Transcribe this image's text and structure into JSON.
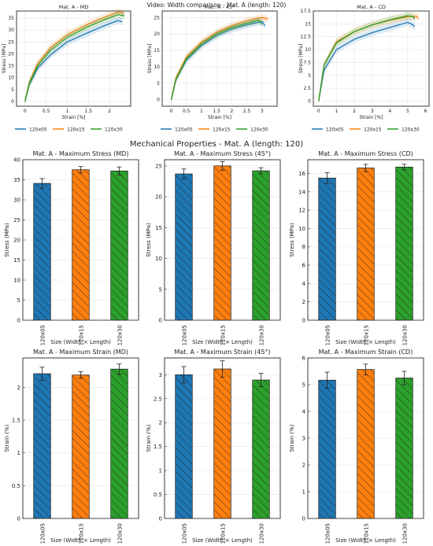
{
  "colors": {
    "s1": "#1f77b4",
    "s2": "#ff7f0e",
    "s3": "#2ca02c",
    "grid": "#e6e6e6"
  },
  "header": {
    "video_title": "Video: Width comparison -   Mat. A (length: 120)"
  },
  "section": {
    "title": "Mechanical Properties - Mat. A (length: 120)"
  },
  "chart_data": [
    {
      "type": "line",
      "title": "Mat. A - MD",
      "xlabel": "Strain [%]",
      "ylabel": "Stress [MPa]",
      "xlim": [
        -0.2,
        2.5
      ],
      "ylim": [
        -2,
        38
      ],
      "grid": true,
      "legend": "bottom",
      "xticks": [
        0.0,
        0.5,
        1.0,
        1.5,
        2.0
      ],
      "yticks": [
        0,
        5,
        10,
        15,
        20,
        25,
        30,
        35
      ],
      "series": [
        {
          "name": "120x05",
          "points": [
            [
              0,
              0
            ],
            [
              0.1,
              7
            ],
            [
              0.3,
              14
            ],
            [
              0.6,
              19.5
            ],
            [
              1.0,
              25
            ],
            [
              1.5,
              29
            ],
            [
              1.9,
              32
            ],
            [
              2.2,
              34
            ],
            [
              2.3,
              33.5
            ]
          ]
        },
        {
          "name": "120x15",
          "points": [
            [
              0,
              0
            ],
            [
              0.1,
              8
            ],
            [
              0.3,
              16
            ],
            [
              0.6,
              22.5
            ],
            [
              1.0,
              28
            ],
            [
              1.5,
              32.5
            ],
            [
              1.9,
              35.5
            ],
            [
              2.2,
              37.5
            ],
            [
              2.35,
              37
            ]
          ]
        },
        {
          "name": "120x30",
          "points": [
            [
              0,
              0
            ],
            [
              0.1,
              7.5
            ],
            [
              0.3,
              15
            ],
            [
              0.6,
              21.5
            ],
            [
              1.0,
              27
            ],
            [
              1.5,
              31.5
            ],
            [
              1.9,
              34.5
            ],
            [
              2.2,
              36.5
            ],
            [
              2.35,
              36
            ]
          ]
        }
      ]
    },
    {
      "type": "line",
      "title": "Mat. A - 45°",
      "xlabel": "Strain [%]",
      "ylabel": "Stress [MPa]",
      "xlim": [
        -0.3,
        3.5
      ],
      "ylim": [
        -2,
        27
      ],
      "grid": true,
      "legend": "bottom",
      "xticks": [
        0.0,
        0.5,
        1.0,
        1.5,
        2.0,
        2.5,
        3.0
      ],
      "yticks": [
        0,
        5,
        10,
        15,
        20,
        25
      ],
      "series": [
        {
          "name": "120x05",
          "points": [
            [
              0,
              0
            ],
            [
              0.15,
              6
            ],
            [
              0.5,
              12
            ],
            [
              1.0,
              16.5
            ],
            [
              1.5,
              19.5
            ],
            [
              2.0,
              21.5
            ],
            [
              2.5,
              22.8
            ],
            [
              3.0,
              23.8
            ],
            [
              3.1,
              22.5
            ]
          ]
        },
        {
          "name": "120x15",
          "points": [
            [
              0,
              0
            ],
            [
              0.15,
              6.5
            ],
            [
              0.5,
              13
            ],
            [
              1.0,
              17.5
            ],
            [
              1.5,
              20.5
            ],
            [
              2.0,
              22.5
            ],
            [
              2.5,
              24
            ],
            [
              3.0,
              25
            ],
            [
              3.2,
              24.5
            ]
          ]
        },
        {
          "name": "120x30",
          "points": [
            [
              0,
              0
            ],
            [
              0.15,
              6
            ],
            [
              0.5,
              12.5
            ],
            [
              1.0,
              17
            ],
            [
              1.5,
              20
            ],
            [
              2.0,
              22
            ],
            [
              2.5,
              23.3
            ],
            [
              2.9,
              24.2
            ],
            [
              3.0,
              23
            ]
          ]
        }
      ]
    },
    {
      "type": "line",
      "title": "Mat. A - CD",
      "xlabel": "Strain [%]",
      "ylabel": "Stress [MPa]",
      "xlim": [
        -0.3,
        6.2
      ],
      "ylim": [
        -1,
        17.5
      ],
      "grid": true,
      "legend": "bottom",
      "xticks": [
        0,
        1,
        2,
        3,
        4,
        5,
        6
      ],
      "yticks": [
        0.0,
        2.5,
        5.0,
        7.5,
        10.0,
        12.5,
        15.0,
        17.5
      ],
      "series": [
        {
          "name": "120x05",
          "points": [
            [
              0,
              0
            ],
            [
              0.3,
              6
            ],
            [
              1.0,
              10
            ],
            [
              2.0,
              12
            ],
            [
              3.0,
              13.3
            ],
            [
              4.0,
              14.3
            ],
            [
              5.0,
              15.3
            ],
            [
              5.2,
              15
            ],
            [
              5.4,
              14.5
            ]
          ]
        },
        {
          "name": "120x15",
          "points": [
            [
              0,
              0
            ],
            [
              0.3,
              7
            ],
            [
              1.0,
              11.5
            ],
            [
              2.0,
              13.5
            ],
            [
              3.0,
              14.8
            ],
            [
              4.0,
              15.7
            ],
            [
              5.0,
              16.4
            ],
            [
              5.5,
              16.5
            ],
            [
              5.6,
              16
            ]
          ]
        },
        {
          "name": "120x30",
          "points": [
            [
              0,
              0
            ],
            [
              0.3,
              7
            ],
            [
              1.0,
              11.3
            ],
            [
              2.0,
              13.5
            ],
            [
              3.0,
              14.8
            ],
            [
              4.0,
              15.8
            ],
            [
              5.0,
              16.6
            ],
            [
              5.3,
              16.4
            ],
            [
              5.4,
              16
            ]
          ]
        }
      ]
    },
    {
      "type": "bar",
      "title": "Mat. A - Maximum Stress (MD)",
      "xlabel": "Size (Width × Length)",
      "ylabel": "Stress (MPa)",
      "categories": [
        "120x05",
        "120x15",
        "120x30"
      ],
      "values": [
        34.1,
        37.5,
        37.2
      ],
      "errors": [
        1.2,
        0.8,
        1.0
      ],
      "ylim": [
        0,
        40
      ],
      "yticks": [
        0,
        5,
        10,
        15,
        20,
        25,
        30,
        35,
        40
      ]
    },
    {
      "type": "bar",
      "title": "Mat. A - Maximum Stress (45°)",
      "xlabel": "Size (Width × Length)",
      "ylabel": "Stress (MPa)",
      "categories": [
        "120x05",
        "120x15",
        "120x30"
      ],
      "values": [
        23.7,
        25.0,
        24.2
      ],
      "errors": [
        0.8,
        0.7,
        0.5
      ],
      "ylim": [
        0,
        26
      ],
      "yticks": [
        0,
        5,
        10,
        15,
        20,
        25
      ]
    },
    {
      "type": "bar",
      "title": "Mat. A - Maximum Stress (CD)",
      "xlabel": "Size (Width × Length)",
      "ylabel": "Stress (MPa)",
      "categories": [
        "120x05",
        "120x15",
        "120x30"
      ],
      "values": [
        15.5,
        16.6,
        16.7
      ],
      "errors": [
        0.6,
        0.4,
        0.3
      ],
      "ylim": [
        0,
        17.5
      ],
      "yticks": [
        0,
        2,
        4,
        6,
        8,
        10,
        12,
        14,
        16
      ]
    },
    {
      "type": "bar",
      "title": "Mat. A - Maximum Strain (MD)",
      "xlabel": "Size (Width × Length)",
      "ylabel": "Strain (%)",
      "categories": [
        "120x05",
        "120x15",
        "120x30"
      ],
      "values": [
        2.21,
        2.19,
        2.28
      ],
      "errors": [
        0.1,
        0.05,
        0.08
      ],
      "ylim": [
        0,
        2.45
      ],
      "yticks": [
        0.0,
        0.5,
        1.0,
        1.5,
        2.0
      ]
    },
    {
      "type": "bar",
      "title": "Mat. A - Maximum Strain (45°)",
      "xlabel": "Size (Width × Length)",
      "ylabel": "Strain (%)",
      "categories": [
        "120x05",
        "120x15",
        "120x30"
      ],
      "values": [
        3.0,
        3.12,
        2.89
      ],
      "errors": [
        0.17,
        0.17,
        0.14
      ],
      "ylim": [
        0,
        3.35
      ],
      "yticks": [
        0.0,
        0.5,
        1.0,
        1.5,
        2.0,
        2.5,
        3.0
      ]
    },
    {
      "type": "bar",
      "title": "Mat. A - Maximum Strain (CD)",
      "xlabel": "Size (Width × Length)",
      "ylabel": "Strain (%)",
      "categories": [
        "120x05",
        "120x15",
        "120x30"
      ],
      "values": [
        5.17,
        5.57,
        5.25
      ],
      "errors": [
        0.3,
        0.2,
        0.25
      ],
      "ylim": [
        0,
        6
      ],
      "yticks": [
        0,
        1,
        2,
        3,
        4,
        5,
        6
      ]
    }
  ]
}
